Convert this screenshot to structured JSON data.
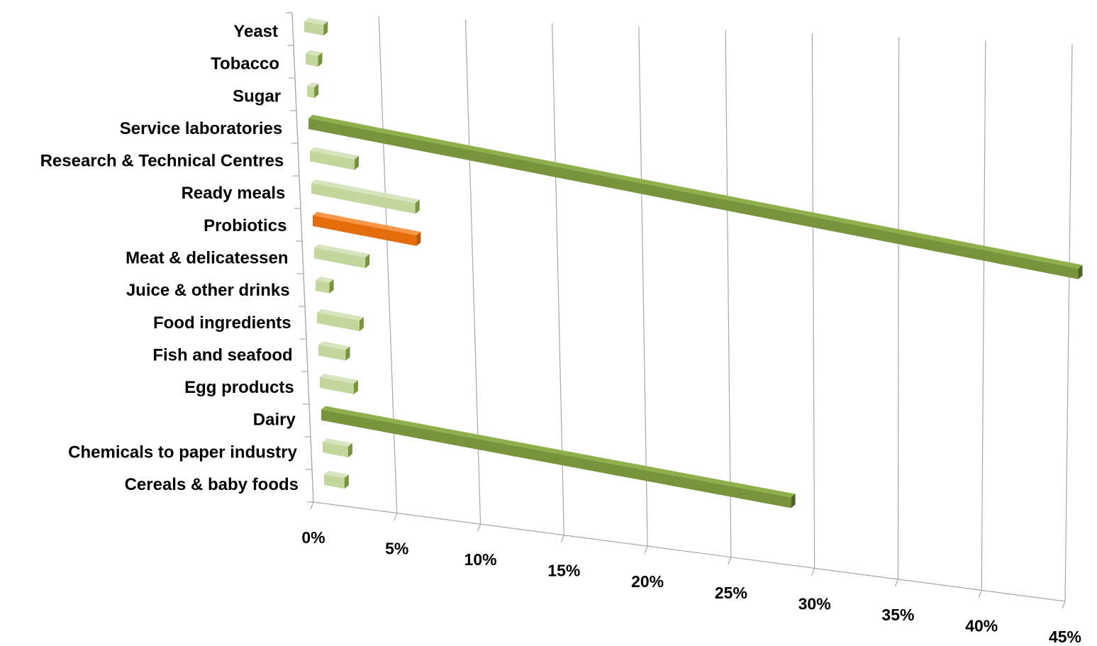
{
  "chart_data": {
    "type": "bar",
    "orientation": "horizontal",
    "style": "3d",
    "categories": [
      "Yeast",
      "Tobacco",
      "Sugar",
      "Service laboratories",
      "Research & Technical Centres",
      "Ready meals",
      "Probiotics",
      "Meat & delicatessen",
      "Juice & other drinks",
      "Food ingredients",
      "Fish and seafood",
      "Egg products",
      "Dairy",
      "Chemicals to paper industry",
      "Cereals & baby foods"
    ],
    "values": [
      1.0,
      0.6,
      0.3,
      45.0,
      2.5,
      6.0,
      6.0,
      2.9,
      0.7,
      2.4,
      1.5,
      1.9,
      28.0,
      1.4,
      1.1
    ],
    "highlight": [
      "",
      "",
      "",
      "dark",
      "",
      "",
      "accent",
      "",
      "",
      "",
      "",
      "",
      "dark",
      "",
      ""
    ],
    "x_ticks": [
      "0%",
      "5%",
      "10%",
      "15%",
      "20%",
      "25%",
      "30%",
      "35%",
      "40%",
      "45%"
    ],
    "xlim": [
      0,
      45
    ],
    "grid": true,
    "legend": "none",
    "colors": {
      "light_face": "#c3d69b",
      "light_top": "#d7e4bd",
      "light_side": "#77933c",
      "dark_face": "#77933c",
      "dark_top": "#8db04a",
      "dark_side": "#4f6228",
      "accent_face": "#e46c0a",
      "accent_top": "#f79646",
      "accent_side": "#b65708",
      "grid": "#a6a6a6"
    }
  }
}
